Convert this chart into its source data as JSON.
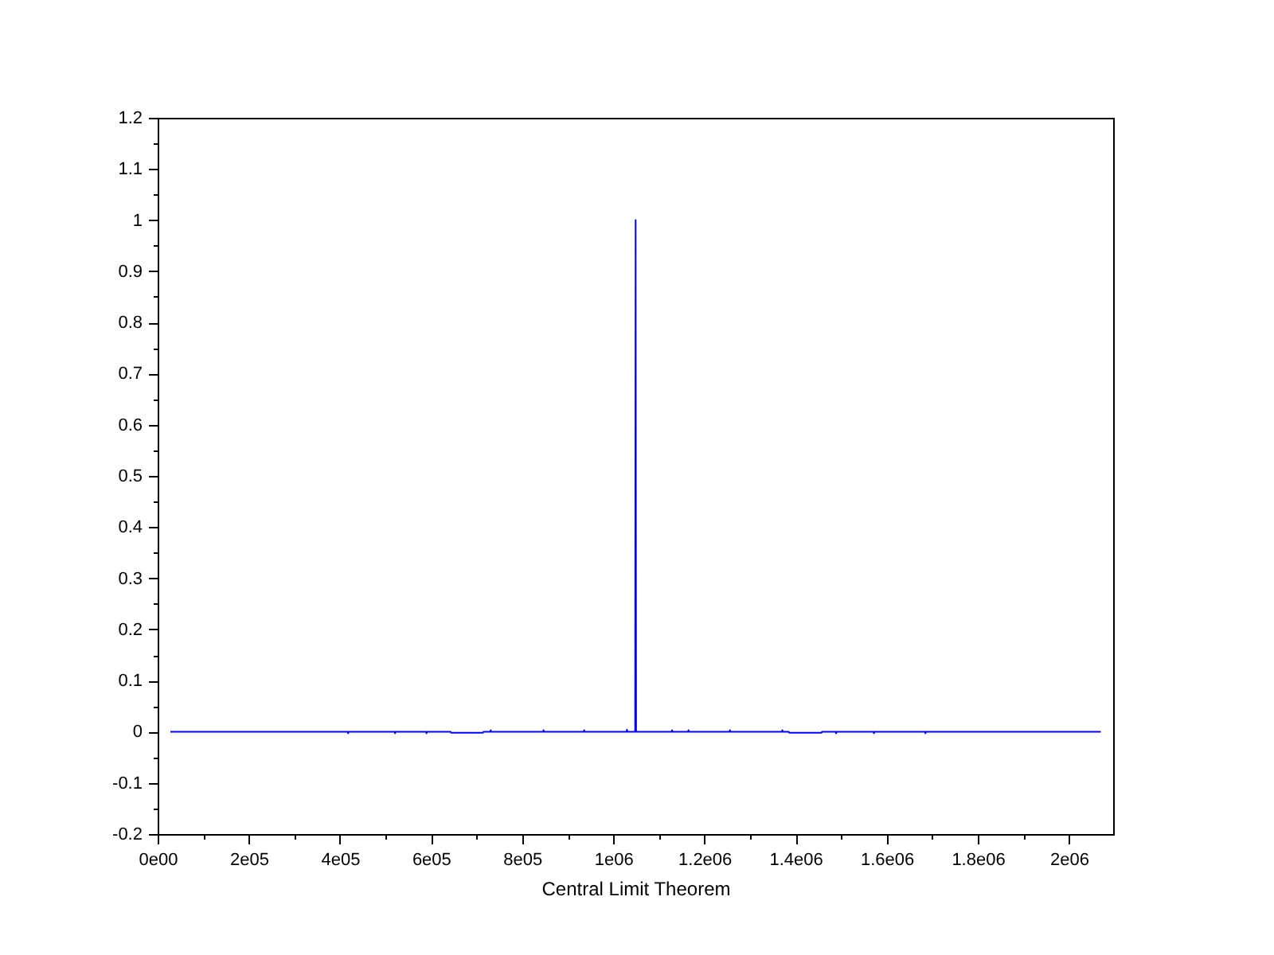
{
  "chart_data": {
    "type": "line",
    "xlabel": "Central Limit Theorem",
    "color": "#0000ff",
    "x": [
      28000,
      417000,
      418000,
      419000,
      520000,
      521000,
      522000,
      589000,
      590000,
      591000,
      643000,
      644000,
      714000,
      715000,
      730000,
      731000,
      732000,
      846000,
      847000,
      848000,
      935000,
      936000,
      937000,
      1029000,
      1030000,
      1031000,
      1048000,
      1049000,
      1050000,
      1128000,
      1129000,
      1130000,
      1164000,
      1165000,
      1166000,
      1255000,
      1256000,
      1257000,
      1370000,
      1371000,
      1372000,
      1385000,
      1386000,
      1457000,
      1458000,
      1488000,
      1489000,
      1490000,
      1571000,
      1572000,
      1573000,
      1684000,
      1685000,
      1686000,
      2070000
    ],
    "values": [
      0,
      0,
      -0.003,
      0,
      0,
      -0.003,
      0,
      0,
      -0.003,
      0,
      0,
      -0.002,
      -0.002,
      0,
      0,
      0.003,
      0,
      0,
      0.003,
      0,
      0,
      0.003,
      0,
      0,
      0.004,
      0,
      0,
      1,
      0,
      0,
      0.003,
      0,
      0,
      0.003,
      0,
      0,
      0.003,
      0,
      0,
      0.003,
      0,
      0,
      -0.002,
      -0.002,
      0,
      0,
      -0.003,
      0,
      0,
      -0.003,
      0,
      0,
      -0.003,
      0,
      0
    ],
    "xlim": [
      0,
      2097000
    ],
    "xticks": [
      {
        "value": 0,
        "label": "0e00"
      },
      {
        "value": 100000,
        "label": null
      },
      {
        "value": 200000,
        "label": "2e05"
      },
      {
        "value": 300000,
        "label": null
      },
      {
        "value": 400000,
        "label": "4e05"
      },
      {
        "value": 500000,
        "label": null
      },
      {
        "value": 600000,
        "label": "6e05"
      },
      {
        "value": 700000,
        "label": null
      },
      {
        "value": 800000,
        "label": "8e05"
      },
      {
        "value": 900000,
        "label": null
      },
      {
        "value": 1000000,
        "label": "1e06"
      },
      {
        "value": 1100000,
        "label": null
      },
      {
        "value": 1200000,
        "label": "1.2e06"
      },
      {
        "value": 1300000,
        "label": null
      },
      {
        "value": 1400000,
        "label": "1.4e06"
      },
      {
        "value": 1500000,
        "label": null
      },
      {
        "value": 1600000,
        "label": "1.6e06"
      },
      {
        "value": 1700000,
        "label": null
      },
      {
        "value": 1800000,
        "label": "1.8e06"
      },
      {
        "value": 1900000,
        "label": null
      },
      {
        "value": 2000000,
        "label": "2e06"
      }
    ],
    "ylim": [
      -0.2,
      1.2
    ],
    "yticks": [
      -0.2,
      {
        "value": -0.15,
        "label": null
      },
      -0.1,
      {
        "value": -0.05,
        "label": null
      },
      0,
      {
        "value": 0.05,
        "label": null
      },
      0.1,
      {
        "value": 0.15,
        "label": null
      },
      0.2,
      {
        "value": 0.25,
        "label": null
      },
      0.3,
      {
        "value": 0.35,
        "label": null
      },
      0.4,
      {
        "value": 0.45,
        "label": null
      },
      0.5,
      {
        "value": 0.55,
        "label": null
      },
      0.6,
      {
        "value": 0.65,
        "label": null
      },
      0.7,
      {
        "value": 0.75,
        "label": null
      },
      0.8,
      {
        "value": 0.85,
        "label": null
      },
      0.9,
      {
        "value": 0.95,
        "label": null
      },
      1,
      {
        "value": 1.05,
        "label": null
      },
      1.1,
      {
        "value": 1.15,
        "label": null
      },
      1.2
    ]
  }
}
